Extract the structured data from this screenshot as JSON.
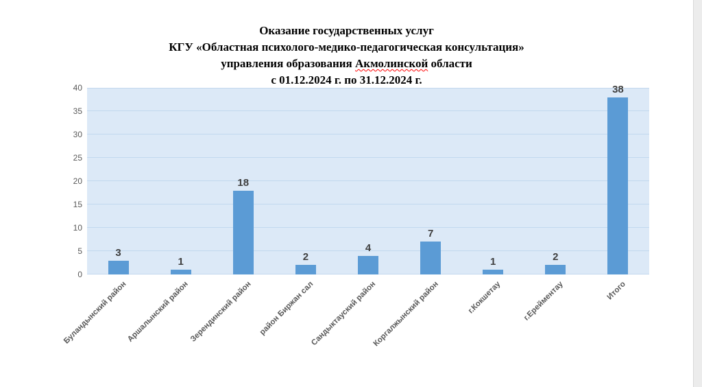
{
  "title": {
    "lines": [
      "Оказание государственных услуг",
      "КГУ «Областная психолого-медико-педагогическая консультация»",
      "управления образования Акмолинской области",
      "с 01.12.2024 г. по 31.12.2024 г."
    ],
    "misspelled_word": "Акмолинской"
  },
  "chart_data": {
    "type": "bar",
    "title": "Оказание государственных услуг КГУ «Областная психолого-медико-педагогическая консультация» управления образования Акмолинской области с 01.12.2024 г. по 31.12.2024 г.",
    "categories": [
      "Буландынский район",
      "Аршалынский район",
      "Зерендинский район",
      "район Биржан сал",
      "Сандыктауский район",
      "Коргалжынский район",
      "г.Кокшетау",
      "г.Ерейментау",
      "Итого"
    ],
    "values": [
      3,
      1,
      18,
      2,
      4,
      7,
      1,
      2,
      38
    ],
    "xlabel": "",
    "ylabel": "",
    "ylim": [
      0,
      40
    ],
    "yticks": [
      0,
      5,
      10,
      15,
      20,
      25,
      30,
      35,
      40
    ],
    "grid": "horizontal",
    "legend_position": "none",
    "data_labels": true,
    "x_label_rotation_deg": 45,
    "colors": {
      "bar": "#5b9bd5",
      "plot_background": "#dce9f7",
      "gridline": "#c2d8ee",
      "axis_tick_label": "#595959",
      "category_label": "#595959",
      "value_label": "#3f3f3f",
      "title": "#000000",
      "spellcheck_underline": "#ff0000",
      "scrollbar_track": "#ececec"
    }
  }
}
